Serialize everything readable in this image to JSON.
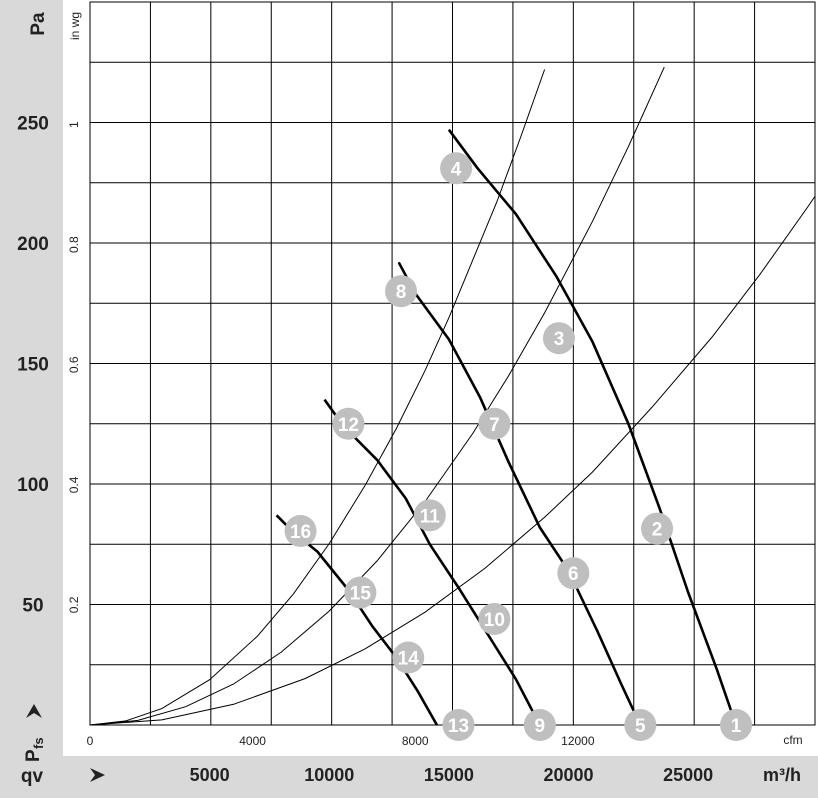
{
  "chart_data": {
    "type": "line",
    "title": "",
    "y_axis_primary": {
      "label": "Pa",
      "ticks": [
        "250",
        "200",
        "150",
        "100",
        "50"
      ],
      "values": [
        250,
        200,
        150,
        100,
        50
      ],
      "ylim": [
        0,
        300
      ]
    },
    "y_axis_secondary": {
      "label": "in wg",
      "ticks": [
        "1",
        "0.8",
        "0.6",
        "0.4",
        "0.2"
      ],
      "values": [
        1,
        0.8,
        0.6,
        0.4,
        0.2
      ]
    },
    "x_axis_primary": {
      "label": "m³/h",
      "ticks": [
        "5000",
        "10000",
        "15000",
        "20000",
        "25000"
      ],
      "values": [
        5000,
        10000,
        15000,
        20000,
        25000
      ],
      "xlim": [
        0,
        30300
      ]
    },
    "x_axis_secondary": {
      "label": "cfm",
      "ticks": [
        "0",
        "4000",
        "8000",
        "12000"
      ],
      "values": [
        0,
        4000,
        8000,
        12000
      ]
    },
    "corner_labels": {
      "pressure": "Pfs",
      "pressure_sub": "fs",
      "pressure_main": "P",
      "flow": "qv"
    },
    "grid": true,
    "fan_curves": [
      {
        "points": [
          [
            15000,
            247
          ],
          [
            16200,
            231
          ],
          [
            17800,
            212
          ],
          [
            19500,
            186
          ],
          [
            21000,
            159
          ],
          [
            22500,
            125
          ],
          [
            23800,
            90
          ],
          [
            25000,
            55
          ],
          [
            26200,
            23
          ],
          [
            27000,
            0
          ]
        ]
      },
      {
        "points": [
          [
            12900,
            192
          ],
          [
            13600,
            179
          ],
          [
            15000,
            160
          ],
          [
            16300,
            136
          ],
          [
            17500,
            109
          ],
          [
            18800,
            82
          ],
          [
            20000,
            64
          ],
          [
            21200,
            39
          ],
          [
            22200,
            17
          ],
          [
            23000,
            0
          ]
        ]
      },
      {
        "points": [
          [
            9800,
            135
          ],
          [
            10600,
            124
          ],
          [
            12000,
            110
          ],
          [
            13200,
            94
          ],
          [
            14200,
            75
          ],
          [
            15400,
            57
          ],
          [
            16600,
            38
          ],
          [
            17800,
            19
          ],
          [
            18800,
            0
          ]
        ]
      },
      {
        "points": [
          [
            7800,
            87
          ],
          [
            8500,
            80
          ],
          [
            9500,
            72
          ],
          [
            10800,
            56
          ],
          [
            11800,
            41
          ],
          [
            12800,
            28
          ],
          [
            13700,
            14
          ],
          [
            14500,
            0
          ]
        ]
      }
    ],
    "system_curves": [
      {
        "points": [
          [
            0,
            0
          ],
          [
            3000,
            2.1
          ],
          [
            6000,
            8.6
          ],
          [
            9000,
            19.3
          ],
          [
            11500,
            31.6
          ],
          [
            14000,
            46.8
          ],
          [
            16500,
            65
          ],
          [
            19000,
            86.2
          ],
          [
            21000,
            105
          ],
          [
            23500,
            132
          ],
          [
            26000,
            161
          ],
          [
            28000,
            187
          ],
          [
            30000,
            215
          ],
          [
            31700,
            240
          ],
          [
            33000,
            260
          ],
          [
            34500,
            284
          ]
        ]
      },
      {
        "points": [
          [
            0,
            0
          ],
          [
            2000,
            1.9
          ],
          [
            4000,
            7.6
          ],
          [
            6000,
            17
          ],
          [
            8000,
            30.3
          ],
          [
            10000,
            47.3
          ],
          [
            12000,
            68.1
          ],
          [
            14000,
            92.7
          ],
          [
            16000,
            121
          ],
          [
            17500,
            145
          ],
          [
            19000,
            171
          ],
          [
            21000,
            209
          ],
          [
            22500,
            240
          ],
          [
            24000,
            273
          ]
        ]
      },
      {
        "points": [
          [
            0,
            0
          ],
          [
            1500,
            1.7
          ],
          [
            3000,
            6.8
          ],
          [
            5000,
            18.8
          ],
          [
            7000,
            36.9
          ],
          [
            8500,
            54.4
          ],
          [
            10000,
            75.3
          ],
          [
            11500,
            99.5
          ],
          [
            12800,
            123
          ],
          [
            14000,
            147
          ],
          [
            15000,
            169
          ],
          [
            16000,
            193
          ],
          [
            17000,
            217
          ],
          [
            18000,
            244
          ],
          [
            19000,
            272
          ]
        ]
      }
    ],
    "markers": [
      {
        "label": "1",
        "x": 27000,
        "y": 0
      },
      {
        "label": "2",
        "x": 23700,
        "y": 81.5
      },
      {
        "label": "3",
        "x": 19600,
        "y": 160.5
      },
      {
        "label": "4",
        "x": 15300,
        "y": 231
      },
      {
        "label": "5",
        "x": 23000,
        "y": 0
      },
      {
        "label": "6",
        "x": 20200,
        "y": 63
      },
      {
        "label": "7",
        "x": 16900,
        "y": 125
      },
      {
        "label": "8",
        "x": 13000,
        "y": 180
      },
      {
        "label": "9",
        "x": 18800,
        "y": 0
      },
      {
        "label": "10",
        "x": 16900,
        "y": 44
      },
      {
        "label": "11",
        "x": 14200,
        "y": 87
      },
      {
        "label": "12",
        "x": 10800,
        "y": 125
      },
      {
        "label": "13",
        "x": 15400,
        "y": 0
      },
      {
        "label": "14",
        "x": 13300,
        "y": 28
      },
      {
        "label": "15",
        "x": 11300,
        "y": 55
      },
      {
        "label": "16",
        "x": 8800,
        "y": 80.5
      }
    ]
  }
}
